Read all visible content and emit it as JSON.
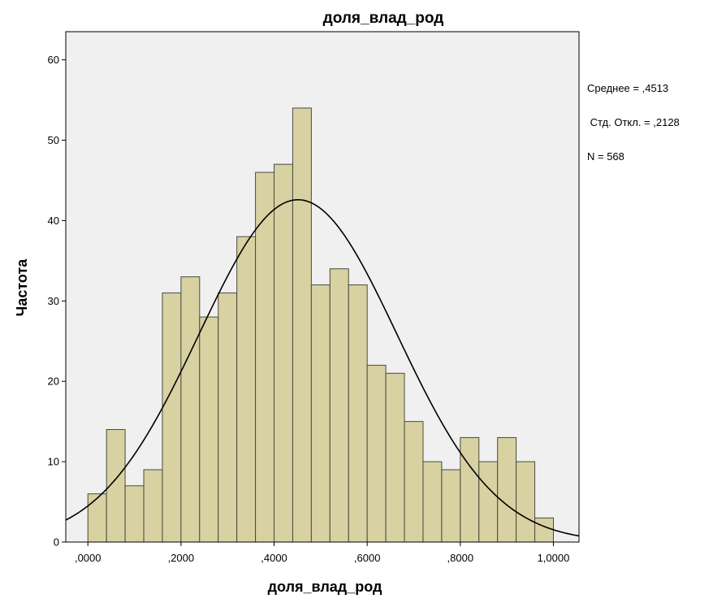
{
  "chart_data": {
    "type": "bar",
    "title": "доля_влад_род",
    "xlabel": "доля_влад_род",
    "ylabel": "Частота",
    "xlim": [
      -0.0475,
      1.055
    ],
    "ylim": [
      0,
      63.5
    ],
    "x_ticks": [
      {
        "value": 0.0,
        "label": ",0000"
      },
      {
        "value": 0.2,
        "label": ",2000"
      },
      {
        "value": 0.4,
        "label": ",4000"
      },
      {
        "value": 0.6,
        "label": ",6000"
      },
      {
        "value": 0.8,
        "label": ",8000"
      },
      {
        "value": 1.0,
        "label": "1,0000"
      }
    ],
    "y_ticks": [
      {
        "value": 0,
        "label": "0"
      },
      {
        "value": 10,
        "label": "10"
      },
      {
        "value": 20,
        "label": "20"
      },
      {
        "value": 30,
        "label": "30"
      },
      {
        "value": 40,
        "label": "40"
      },
      {
        "value": 50,
        "label": "50"
      },
      {
        "value": 60,
        "label": "60"
      }
    ],
    "bin_width": 0.04,
    "bin_starts": [
      0.0,
      0.04,
      0.08,
      0.12,
      0.16,
      0.2,
      0.24,
      0.28,
      0.32,
      0.36,
      0.4,
      0.44,
      0.48,
      0.52,
      0.56,
      0.6,
      0.64,
      0.68,
      0.72,
      0.76,
      0.8,
      0.84,
      0.88,
      0.92,
      0.96
    ],
    "values": [
      6,
      14,
      7,
      9,
      31,
      33,
      28,
      31,
      38,
      46,
      47,
      54,
      32,
      34,
      32,
      22,
      21,
      15,
      10,
      9,
      13,
      10,
      13,
      10,
      3
    ],
    "normal_curve": {
      "mean": 0.4513,
      "std": 0.2128,
      "n": 568
    },
    "bar_color": "#d8d1a1",
    "bar_edge_color": "#4a4a40",
    "plot_bg": "#f0f0f0",
    "grid": false,
    "legend_placement": "right",
    "stats_lines": [
      "Среднее = ,4513",
      " Стд. Откл. = ,2128",
      "N = 568"
    ]
  }
}
